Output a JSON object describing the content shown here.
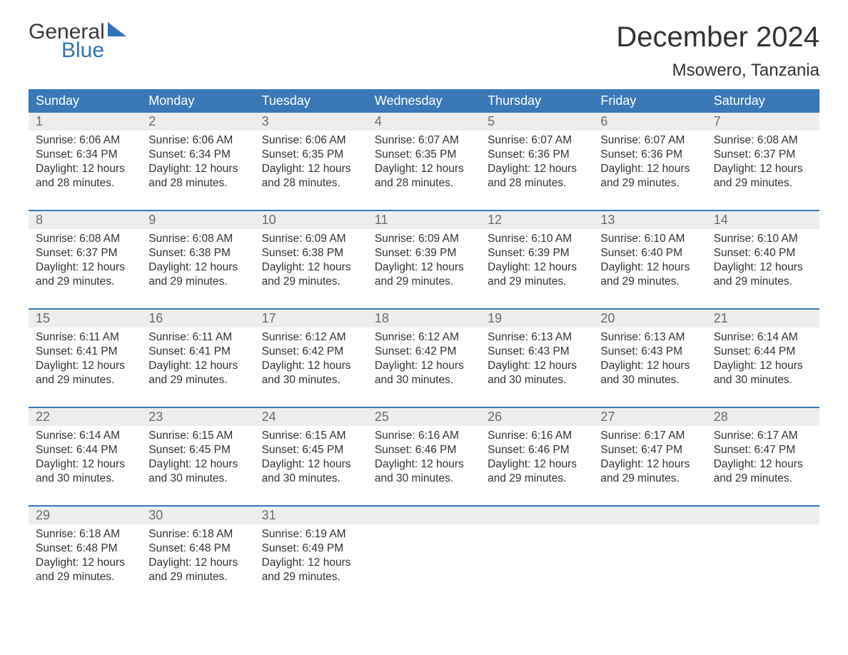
{
  "logo": {
    "word1": "General",
    "word2": "Blue"
  },
  "title": "December 2024",
  "location": "Msowero, Tanzania",
  "colors": {
    "header_bg": "#3a78b8",
    "header_text": "#ffffff",
    "numrow_bg": "#ededed",
    "num_text": "#6b6b6b",
    "body_text": "#333333",
    "accent": "#2f73b8",
    "background": "#ffffff"
  },
  "typography": {
    "title_fontsize": 40,
    "location_fontsize": 24,
    "dow_fontsize": 18,
    "daynum_fontsize": 18,
    "body_fontsize": 15.5,
    "logo_fontsize": 30
  },
  "dow": [
    "Sunday",
    "Monday",
    "Tuesday",
    "Wednesday",
    "Thursday",
    "Friday",
    "Saturday"
  ],
  "weeks": [
    [
      {
        "n": "1",
        "sr": "6:06 AM",
        "ss": "6:34 PM",
        "dl": "12 hours and 28 minutes."
      },
      {
        "n": "2",
        "sr": "6:06 AM",
        "ss": "6:34 PM",
        "dl": "12 hours and 28 minutes."
      },
      {
        "n": "3",
        "sr": "6:06 AM",
        "ss": "6:35 PM",
        "dl": "12 hours and 28 minutes."
      },
      {
        "n": "4",
        "sr": "6:07 AM",
        "ss": "6:35 PM",
        "dl": "12 hours and 28 minutes."
      },
      {
        "n": "5",
        "sr": "6:07 AM",
        "ss": "6:36 PM",
        "dl": "12 hours and 28 minutes."
      },
      {
        "n": "6",
        "sr": "6:07 AM",
        "ss": "6:36 PM",
        "dl": "12 hours and 29 minutes."
      },
      {
        "n": "7",
        "sr": "6:08 AM",
        "ss": "6:37 PM",
        "dl": "12 hours and 29 minutes."
      }
    ],
    [
      {
        "n": "8",
        "sr": "6:08 AM",
        "ss": "6:37 PM",
        "dl": "12 hours and 29 minutes."
      },
      {
        "n": "9",
        "sr": "6:08 AM",
        "ss": "6:38 PM",
        "dl": "12 hours and 29 minutes."
      },
      {
        "n": "10",
        "sr": "6:09 AM",
        "ss": "6:38 PM",
        "dl": "12 hours and 29 minutes."
      },
      {
        "n": "11",
        "sr": "6:09 AM",
        "ss": "6:39 PM",
        "dl": "12 hours and 29 minutes."
      },
      {
        "n": "12",
        "sr": "6:10 AM",
        "ss": "6:39 PM",
        "dl": "12 hours and 29 minutes."
      },
      {
        "n": "13",
        "sr": "6:10 AM",
        "ss": "6:40 PM",
        "dl": "12 hours and 29 minutes."
      },
      {
        "n": "14",
        "sr": "6:10 AM",
        "ss": "6:40 PM",
        "dl": "12 hours and 29 minutes."
      }
    ],
    [
      {
        "n": "15",
        "sr": "6:11 AM",
        "ss": "6:41 PM",
        "dl": "12 hours and 29 minutes."
      },
      {
        "n": "16",
        "sr": "6:11 AM",
        "ss": "6:41 PM",
        "dl": "12 hours and 29 minutes."
      },
      {
        "n": "17",
        "sr": "6:12 AM",
        "ss": "6:42 PM",
        "dl": "12 hours and 30 minutes."
      },
      {
        "n": "18",
        "sr": "6:12 AM",
        "ss": "6:42 PM",
        "dl": "12 hours and 30 minutes."
      },
      {
        "n": "19",
        "sr": "6:13 AM",
        "ss": "6:43 PM",
        "dl": "12 hours and 30 minutes."
      },
      {
        "n": "20",
        "sr": "6:13 AM",
        "ss": "6:43 PM",
        "dl": "12 hours and 30 minutes."
      },
      {
        "n": "21",
        "sr": "6:14 AM",
        "ss": "6:44 PM",
        "dl": "12 hours and 30 minutes."
      }
    ],
    [
      {
        "n": "22",
        "sr": "6:14 AM",
        "ss": "6:44 PM",
        "dl": "12 hours and 30 minutes."
      },
      {
        "n": "23",
        "sr": "6:15 AM",
        "ss": "6:45 PM",
        "dl": "12 hours and 30 minutes."
      },
      {
        "n": "24",
        "sr": "6:15 AM",
        "ss": "6:45 PM",
        "dl": "12 hours and 30 minutes."
      },
      {
        "n": "25",
        "sr": "6:16 AM",
        "ss": "6:46 PM",
        "dl": "12 hours and 30 minutes."
      },
      {
        "n": "26",
        "sr": "6:16 AM",
        "ss": "6:46 PM",
        "dl": "12 hours and 29 minutes."
      },
      {
        "n": "27",
        "sr": "6:17 AM",
        "ss": "6:47 PM",
        "dl": "12 hours and 29 minutes."
      },
      {
        "n": "28",
        "sr": "6:17 AM",
        "ss": "6:47 PM",
        "dl": "12 hours and 29 minutes."
      }
    ],
    [
      {
        "n": "29",
        "sr": "6:18 AM",
        "ss": "6:48 PM",
        "dl": "12 hours and 29 minutes."
      },
      {
        "n": "30",
        "sr": "6:18 AM",
        "ss": "6:48 PM",
        "dl": "12 hours and 29 minutes."
      },
      {
        "n": "31",
        "sr": "6:19 AM",
        "ss": "6:49 PM",
        "dl": "12 hours and 29 minutes."
      },
      null,
      null,
      null,
      null
    ]
  ],
  "labels": {
    "sunrise": "Sunrise: ",
    "sunset": "Sunset: ",
    "daylight": "Daylight: "
  }
}
